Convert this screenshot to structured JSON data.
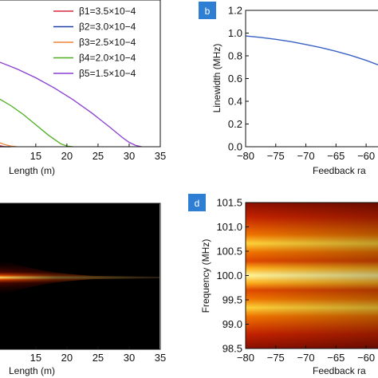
{
  "panel_tags": {
    "b": "b",
    "d": "d"
  },
  "colors": {
    "tag_fill": "#2e7fd3",
    "b_curve": "#3a62c4"
  },
  "chart_data": [
    {
      "id": "a",
      "type": "line",
      "xlabel": "Length (m)",
      "x_ticks": [
        "15",
        "20",
        "25",
        "30",
        "35"
      ],
      "xlim": [
        9,
        35
      ],
      "ylim": [
        0,
        1
      ],
      "legend_position": "top-right",
      "series": [
        {
          "name": "β1=3.5×10−4",
          "color": "#d7263d",
          "x": [
            9,
            10,
            11
          ],
          "y": [
            0.01,
            0.0,
            0.0
          ]
        },
        {
          "name": "β2=3.0×10−4",
          "color": "#1f3fa8",
          "x": [
            9,
            10,
            11
          ],
          "y": [
            0.0,
            0.0,
            0.0
          ]
        },
        {
          "name": "β3=2.5×10−4",
          "color": "#f0843c",
          "x": [
            9,
            10,
            11,
            12
          ],
          "y": [
            0.03,
            0.015,
            0.005,
            0.0
          ]
        },
        {
          "name": "β4=2.0×10−4",
          "color": "#4caf1f",
          "x": [
            9,
            11,
            13,
            15,
            17,
            19,
            20,
            21
          ],
          "y": [
            0.33,
            0.28,
            0.22,
            0.15,
            0.08,
            0.02,
            0.005,
            0.0
          ]
        },
        {
          "name": "β5=1.5×10−4",
          "color": "#8a3fd1",
          "x": [
            9,
            12,
            15,
            18,
            21,
            24,
            27,
            29,
            30,
            31,
            32
          ],
          "y": [
            0.58,
            0.53,
            0.47,
            0.4,
            0.32,
            0.23,
            0.13,
            0.06,
            0.03,
            0.01,
            0.0
          ]
        }
      ]
    },
    {
      "id": "b",
      "type": "line",
      "ylabel": "Linewidth (MHz)",
      "xlabel": "Feedback ra",
      "x_ticks": [
        "−80",
        "−75",
        "−70",
        "−65",
        "−60"
      ],
      "y_ticks": [
        "0.0",
        "0.2",
        "0.4",
        "0.6",
        "0.8",
        "1.0",
        "1.2"
      ],
      "xlim": [
        -80,
        -57.5
      ],
      "ylim": [
        0,
        1.2
      ],
      "series": [
        {
          "x": [
            -80,
            -77.5,
            -75,
            -72.5,
            -70,
            -67.5,
            -65,
            -62.5,
            -60,
            -57.5
          ],
          "y": [
            0.975,
            0.962,
            0.945,
            0.925,
            0.9,
            0.872,
            0.84,
            0.803,
            0.76,
            0.71
          ]
        }
      ]
    },
    {
      "id": "c",
      "type": "heatmap",
      "xlabel": "Length (m)",
      "x_ticks": [
        "15",
        "20",
        "25",
        "30",
        "35"
      ],
      "xlim": [
        9,
        35
      ],
      "colormap": "hot"
    },
    {
      "id": "d",
      "type": "heatmap",
      "ylabel": "Frequency (MHz)",
      "xlabel": "Feedback ra",
      "x_ticks": [
        "−80",
        "−75",
        "−70",
        "−65",
        "−60"
      ],
      "y_ticks": [
        "98.5",
        "99.0",
        "99.5",
        "100.0",
        "100.5",
        "101.0",
        "101.5"
      ],
      "xlim": [
        -80,
        -57.5
      ],
      "ylim": [
        98.5,
        101.5
      ],
      "colormap": "hot"
    }
  ]
}
